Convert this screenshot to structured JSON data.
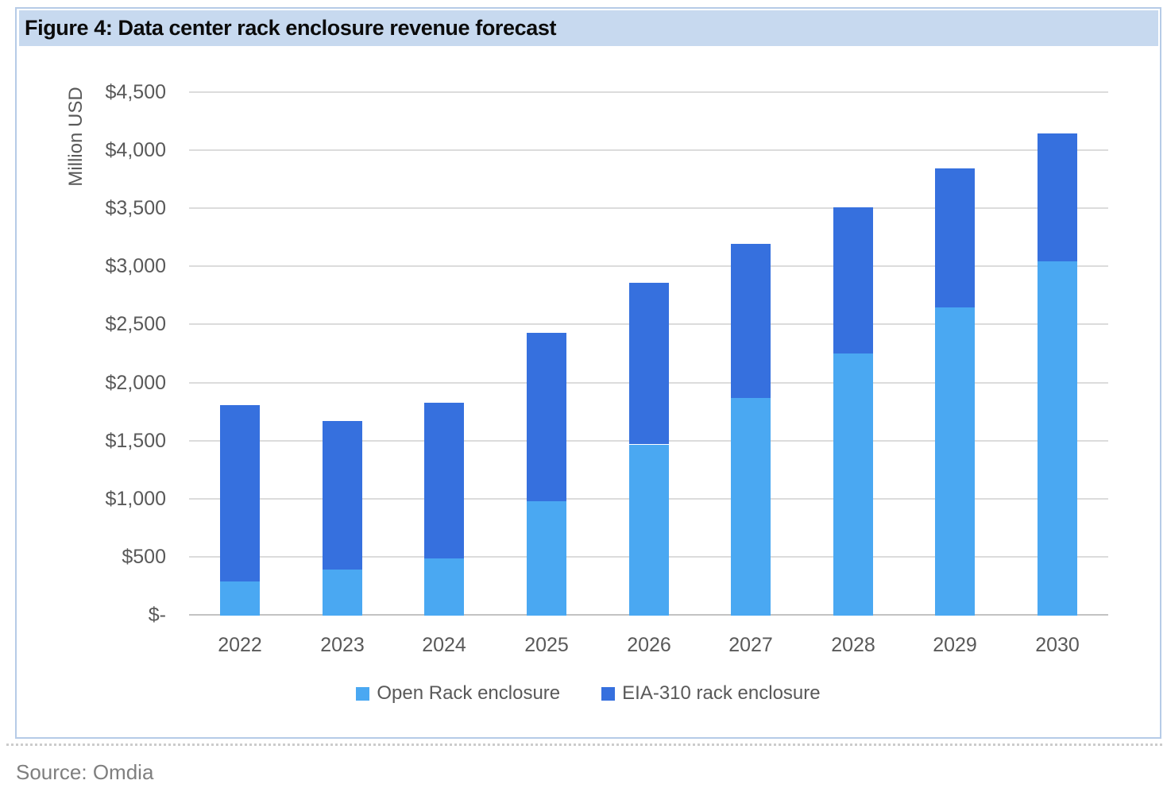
{
  "header": {
    "title": "Figure 4: Data center rack enclosure revenue forecast"
  },
  "footer": {
    "source": "Source: Omdia"
  },
  "chart_data": {
    "type": "bar",
    "stacked": true,
    "title": "Figure 4: Data center rack enclosure revenue forecast",
    "categories": [
      "2022",
      "2023",
      "2024",
      "2025",
      "2026",
      "2027",
      "2028",
      "2029",
      "2030"
    ],
    "series": [
      {
        "name": "Open Rack enclosure",
        "color": "#4aa8f2",
        "values": [
          280,
          380,
          480,
          970,
          1460,
          1860,
          2240,
          2640,
          3040
        ]
      },
      {
        "name": "EIA-310 rack enclosure",
        "color": "#3670de",
        "values": [
          1520,
          1280,
          1340,
          1450,
          1390,
          1330,
          1260,
          1200,
          1100
        ]
      }
    ],
    "stack_totals": [
      1800,
      1660,
      1820,
      2420,
      2850,
      3190,
      3500,
      3840,
      4140
    ],
    "xlabel": "",
    "ylabel": "Million USD",
    "ylim": [
      0,
      4500
    ],
    "ytick_interval": 500,
    "ytick_labels": [
      "$-",
      "$500",
      "$1,000",
      "$1,500",
      "$2,000",
      "$2,500",
      "$3,000",
      "$3,500",
      "$4,000",
      "$4,500"
    ],
    "grid": true,
    "legend_position": "bottom"
  },
  "colors": {
    "open_rack": "#4aa8f2",
    "eia_310": "#3670de",
    "title_band_background": "#c7d9ef",
    "frame_border": "#b6cbe7",
    "gridline": "#dcdcdc",
    "axis_line": "#c3c3c3",
    "axis_text": "#595959",
    "legend_text": "#595959",
    "source_text": "#7f7f7f",
    "title_text": "#0b0b0b"
  }
}
